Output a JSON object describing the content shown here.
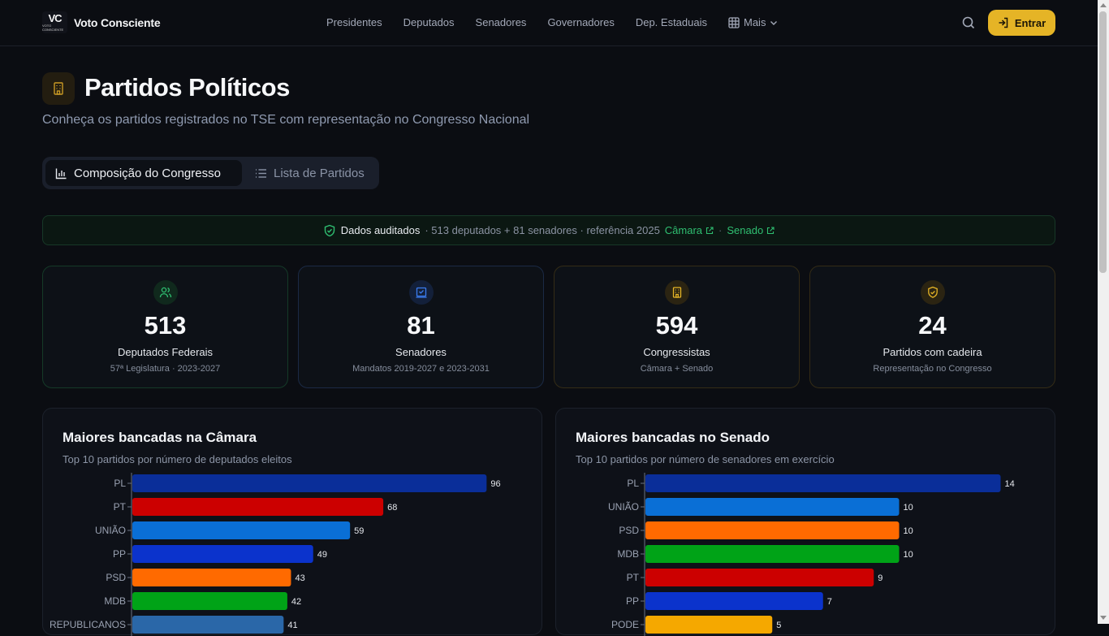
{
  "header": {
    "logo_text": "VC",
    "logo_caption": "VOTO CONSCIENTE",
    "brand": "Voto Consciente",
    "nav": [
      "Presidentes",
      "Deputados",
      "Senadores",
      "Governadores",
      "Dep. Estaduais"
    ],
    "more_label": "Mais",
    "login_label": "Entrar",
    "accent": "#e5b426"
  },
  "page": {
    "title": "Partidos Políticos",
    "subtitle": "Conheça os partidos registrados no TSE com representação no Congresso Nacional"
  },
  "tabs": [
    {
      "label": "Composição do Congresso",
      "active": true,
      "icon": "bar-chart-icon"
    },
    {
      "label": "Lista de Partidos",
      "active": false,
      "icon": "list-icon"
    }
  ],
  "audit": {
    "label": "Dados auditados",
    "meta": "· 513 deputados + 81 senadores · referência 2025",
    "link_camara": "Câmara",
    "separator": "·",
    "link_senado": "Senado"
  },
  "stats": [
    {
      "value": "513",
      "label": "Deputados Federais",
      "sub": "57ª Legislatura · 2023-2027",
      "icon": "users-icon",
      "color": "#2fbf71"
    },
    {
      "value": "81",
      "label": "Senadores",
      "sub": "Mandatos 2019-2027 e 2023-2031",
      "icon": "ballot-icon",
      "color": "#3b7cf0"
    },
    {
      "value": "594",
      "label": "Congressistas",
      "sub": "Câmara + Senado",
      "icon": "building-icon",
      "color": "#e5b426"
    },
    {
      "value": "24",
      "label": "Partidos com cadeira",
      "sub": "Representação no Congresso",
      "icon": "shield-icon",
      "color": "#e5b426"
    }
  ],
  "chart_data": [
    {
      "type": "bar",
      "orientation": "horizontal",
      "title": "Maiores bancadas na Câmara",
      "subtitle": "Top 10 partidos por número de deputados eleitos",
      "categories": [
        "PL",
        "PT",
        "UNIÃO",
        "PP",
        "PSD",
        "MDB",
        "REPUBLICANOS"
      ],
      "values": [
        96,
        68,
        59,
        49,
        43,
        42,
        41
      ],
      "colors": [
        "#0a2e99",
        "#cc0000",
        "#0a6fd6",
        "#0b33cc",
        "#ff6a00",
        "#00a317",
        "#2a67a8"
      ],
      "xlim": [
        0,
        110
      ]
    },
    {
      "type": "bar",
      "orientation": "horizontal",
      "title": "Maiores bancadas no Senado",
      "subtitle": "Top 10 partidos por número de senadores em exercício",
      "categories": [
        "PL",
        "UNIÃO",
        "PSD",
        "MDB",
        "PT",
        "PP",
        "PODE"
      ],
      "values": [
        14,
        10,
        10,
        10,
        9,
        7,
        5
      ],
      "colors": [
        "#0a2e99",
        "#0a6fd6",
        "#ff6a00",
        "#00a317",
        "#cc0000",
        "#0b33cc",
        "#f5a800"
      ],
      "xlim": [
        0,
        16
      ]
    }
  ]
}
